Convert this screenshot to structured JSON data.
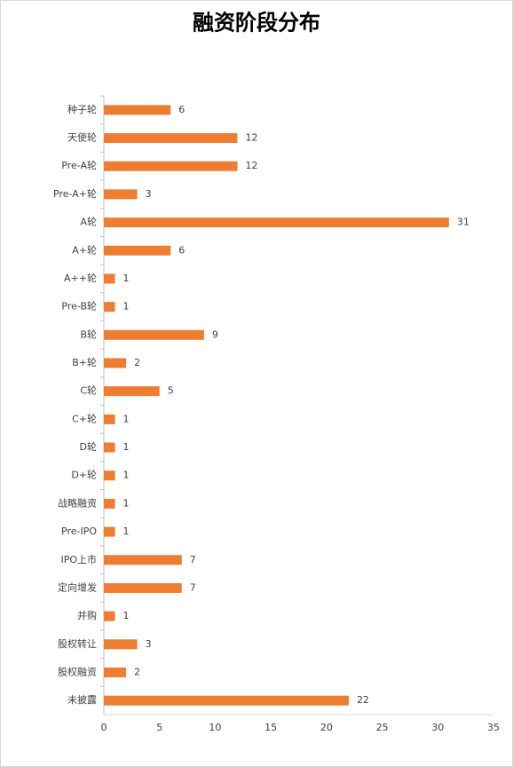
{
  "chart_data": {
    "type": "hbar",
    "title": "融资阶段分布",
    "categories": [
      "种子轮",
      "天使轮",
      "Pre-A轮",
      "Pre-A+轮",
      "A轮",
      "A+轮",
      "A++轮",
      "Pre-B轮",
      "B轮",
      "B+轮",
      "C轮",
      "C+轮",
      "D轮",
      "D+轮",
      "战略融资",
      "Pre-IPO",
      "IPO上市",
      "定向增发",
      "并购",
      "股权转让",
      "股权融资",
      "未披露"
    ],
    "values": [
      6,
      12,
      12,
      3,
      31,
      6,
      1,
      1,
      9,
      2,
      5,
      1,
      1,
      1,
      1,
      1,
      7,
      7,
      1,
      3,
      2,
      22
    ],
    "color": "#ed7d31",
    "xlim": [
      0,
      35
    ],
    "xticks": [
      0,
      5,
      10,
      15,
      20,
      25,
      30,
      35
    ],
    "grid": false
  }
}
